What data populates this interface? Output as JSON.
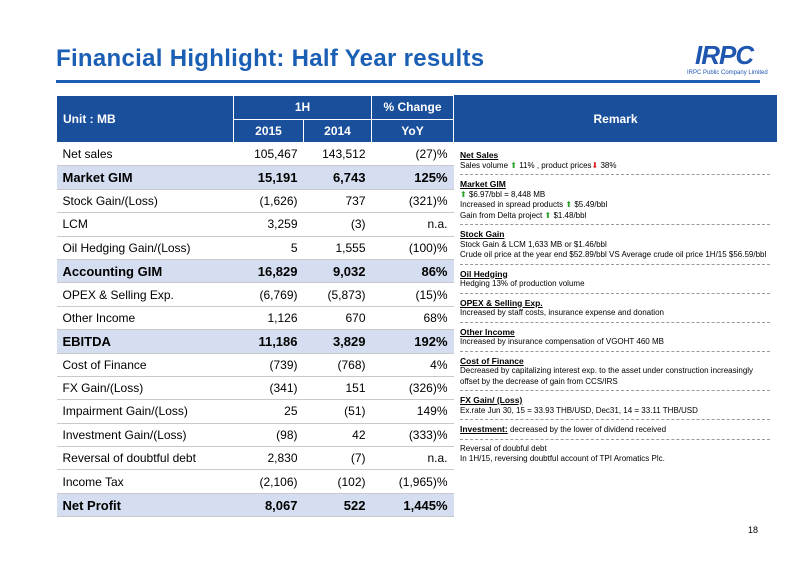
{
  "title": "Financial Highlight:  Half Year results",
  "logo": {
    "word_main": "IRPC",
    "subtitle": "IRPC Public Company Limited"
  },
  "table": {
    "unit_label": "Unit : MB",
    "group_1h": "1H",
    "group_change": "% Change",
    "col_2015": "2015",
    "col_2014": "2014",
    "col_yoy": "YoY",
    "rows": [
      {
        "label": "Net sales",
        "v2015": "105,467",
        "v2014": "143,512",
        "yoy": "(27)%"
      },
      {
        "label": "Market GIM",
        "v2015": "15,191",
        "v2014": "6,743",
        "yoy": "125%"
      },
      {
        "label": "Stock Gain/(Loss)",
        "v2015": "(1,626)",
        "v2014": "737",
        "yoy": "(321)%"
      },
      {
        "label": "LCM",
        "v2015": "3,259",
        "v2014": "(3)",
        "yoy": "n.a."
      },
      {
        "label": "Oil Hedging Gain/(Loss)",
        "v2015": "5",
        "v2014": "1,555",
        "yoy": "(100)%"
      },
      {
        "label": "Accounting GIM",
        "v2015": "16,829",
        "v2014": "9,032",
        "yoy": "86%"
      },
      {
        "label": "OPEX & Selling Exp.",
        "v2015": "(6,769)",
        "v2014": "(5,873)",
        "yoy": "(15)%"
      },
      {
        "label": "Other Income",
        "v2015": "1,126",
        "v2014": "670",
        "yoy": "68%"
      },
      {
        "label": "EBITDA",
        "v2015": "11,186",
        "v2014": "3,829",
        "yoy": "192%"
      },
      {
        "label": "Cost of Finance",
        "v2015": "(739)",
        "v2014": "(768)",
        "yoy": "4%"
      },
      {
        "label": "FX Gain/(Loss)",
        "v2015": "(341)",
        "v2014": "151",
        "yoy": "(326)%"
      },
      {
        "label": "Impairment Gain/(Loss)",
        "v2015": "25",
        "v2014": "(51)",
        "yoy": "149%"
      },
      {
        "label": "Investment Gain/(Loss)",
        "v2015": "(98)",
        "v2014": "42",
        "yoy": "(333)%"
      },
      {
        "label": "Reversal of doubtful debt",
        "v2015": "2,830",
        "v2014": "(7)",
        "yoy": "n.a."
      },
      {
        "label": "Income Tax",
        "v2015": "(2,106)",
        "v2014": "(102)",
        "yoy": "(1,965)%"
      },
      {
        "label": "Net Profit",
        "v2015": "8,067",
        "v2014": "522",
        "yoy": "1,445%"
      }
    ]
  },
  "remarks": {
    "header": "Remark",
    "net_sales_h": "Net Sales",
    "net_sales_1a": "Sales volume",
    "net_sales_1b": "11% , product prices",
    "net_sales_1c": "38%",
    "market_gim_h": "Market GIM",
    "market_gim_1": "$6.97/bbl = 8,448 MB",
    "market_gim_2a": "Increased in spread products",
    "market_gim_2b": "$5.49/bbl",
    "market_gim_3a": "Gain from Delta project",
    "market_gim_3b": "$1.48/bbl",
    "stock_gain_h": "Stock Gain",
    "stock_gain_1": "Stock Gain & LCM 1,633 MB or $1.46/bbl",
    "stock_gain_2": "Crude oil price at the year end $52.89/bbl VS Average crude oil price 1H/15 $56.59/bbl",
    "oil_hedging_h": "Oil Hedging",
    "oil_hedging_1": "Hedging 13% of production volume",
    "opex_h": "OPEX & Selling Exp.",
    "opex_1": "Increased by staff costs, insurance expense and donation",
    "other_income_h": "Other Income",
    "other_income_1": "Increased by insurance compensation of VGOHT 460 MB",
    "cost_finance_h": "Cost of Finance",
    "cost_finance_1": "Decreased by capitalizing interest exp. to the asset under construction increasingly offset by the decrease of  gain from CCS/IRS",
    "fx_h": "FX Gain/ (Loss)",
    "fx_1": "Ex.rate  Jun 30, 15 = 33.93 THB/USD, Dec31, 14 = 33.11 THB/USD",
    "investment_h": "Investment:",
    "investment_1": "decreased by the lower of dividend received",
    "reversal_h": "Reversal of doubful debt",
    "reversal_1": "In 1H/15, reversing doubtful account of TPI Aromatics Plc."
  },
  "page_number": "18",
  "colors": {
    "title_blue": "#1a5fb4",
    "header_blue": "#1a4f9c",
    "highlight_row": "#d4def0",
    "arrow_up": "#2aa02a",
    "arrow_down": "#dd2222"
  }
}
